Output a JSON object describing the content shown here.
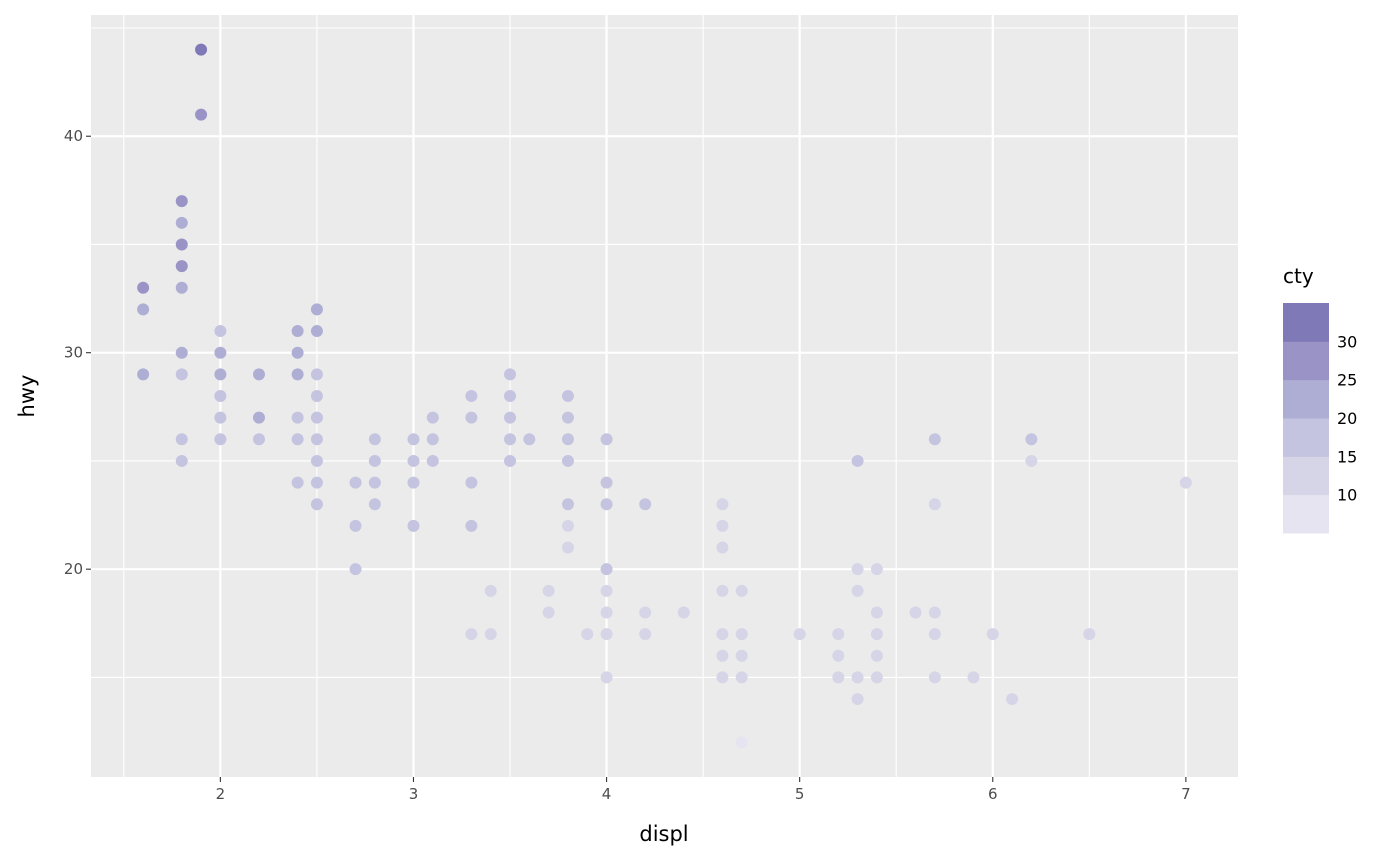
{
  "chart_data": {
    "type": "scatter",
    "title": "",
    "xlabel": "displ",
    "ylabel": "hwy",
    "xlim": [
      1.33,
      7.27
    ],
    "ylim": [
      10.4,
      45.6
    ],
    "x_ticks": [
      2,
      3,
      4,
      5,
      6,
      7
    ],
    "y_ticks": [
      20,
      30,
      40
    ],
    "grid": true,
    "legend": {
      "title": "cty",
      "placement": "right",
      "breaks": [
        10,
        15,
        20,
        25,
        30
      ],
      "bin_colors": [
        "#e6e4f1",
        "#d5d5e7",
        "#c4c4e0",
        "#aeaed4",
        "#9a93c6",
        "#8079b7"
      ]
    },
    "colors": {
      "panel": "#ebebeb",
      "grid": "#ffffff",
      "tick_text": "#4d4d4d"
    },
    "points_columns": [
      "displ",
      "hwy",
      "cty"
    ],
    "points": [
      [
        1.9,
        44,
        33
      ],
      [
        1.9,
        41,
        28
      ],
      [
        1.8,
        37,
        28
      ],
      [
        1.8,
        36,
        24
      ],
      [
        1.8,
        35,
        28
      ],
      [
        1.8,
        34,
        28
      ],
      [
        1.8,
        33,
        24
      ],
      [
        1.8,
        30,
        21
      ],
      [
        1.8,
        29,
        18
      ],
      [
        1.8,
        26,
        18
      ],
      [
        1.8,
        25,
        18
      ],
      [
        1.6,
        33,
        28
      ],
      [
        1.6,
        32,
        24
      ],
      [
        1.6,
        29,
        23
      ],
      [
        2.0,
        31,
        18
      ],
      [
        2.0,
        30,
        21
      ],
      [
        2.0,
        29,
        21
      ],
      [
        2.0,
        28,
        18
      ],
      [
        2.0,
        27,
        18
      ],
      [
        2.0,
        26,
        18
      ],
      [
        2.2,
        29,
        21
      ],
      [
        2.2,
        27,
        21
      ],
      [
        2.2,
        26,
        18
      ],
      [
        2.4,
        31,
        21
      ],
      [
        2.4,
        30,
        21
      ],
      [
        2.4,
        29,
        21
      ],
      [
        2.4,
        27,
        18
      ],
      [
        2.4,
        26,
        18
      ],
      [
        2.4,
        24,
        18
      ],
      [
        2.5,
        32,
        21
      ],
      [
        2.5,
        31,
        21
      ],
      [
        2.5,
        29,
        18
      ],
      [
        2.5,
        28,
        18
      ],
      [
        2.5,
        27,
        18
      ],
      [
        2.5,
        26,
        18
      ],
      [
        2.5,
        25,
        18
      ],
      [
        2.5,
        24,
        18
      ],
      [
        2.5,
        23,
        18
      ],
      [
        2.7,
        24,
        18
      ],
      [
        2.7,
        22,
        18
      ],
      [
        2.7,
        20,
        18
      ],
      [
        2.8,
        26,
        18
      ],
      [
        2.8,
        25,
        18
      ],
      [
        2.8,
        24,
        18
      ],
      [
        2.8,
        23,
        18
      ],
      [
        3.0,
        26,
        18
      ],
      [
        3.0,
        25,
        18
      ],
      [
        3.0,
        24,
        18
      ],
      [
        3.0,
        22,
        18
      ],
      [
        3.1,
        27,
        18
      ],
      [
        3.1,
        26,
        18
      ],
      [
        3.1,
        25,
        18
      ],
      [
        3.3,
        28,
        18
      ],
      [
        3.3,
        27,
        18
      ],
      [
        3.3,
        24,
        18
      ],
      [
        3.3,
        22,
        18
      ],
      [
        3.3,
        17,
        13
      ],
      [
        3.4,
        19,
        13
      ],
      [
        3.4,
        17,
        13
      ],
      [
        3.5,
        29,
        18
      ],
      [
        3.5,
        28,
        18
      ],
      [
        3.5,
        27,
        18
      ],
      [
        3.5,
        26,
        18
      ],
      [
        3.5,
        25,
        18
      ],
      [
        3.6,
        26,
        18
      ],
      [
        3.7,
        19,
        13
      ],
      [
        3.7,
        18,
        13
      ],
      [
        3.8,
        28,
        18
      ],
      [
        3.8,
        27,
        18
      ],
      [
        3.8,
        26,
        18
      ],
      [
        3.8,
        25,
        18
      ],
      [
        3.8,
        23,
        18
      ],
      [
        3.8,
        22,
        14
      ],
      [
        3.8,
        21,
        14
      ],
      [
        3.9,
        17,
        13
      ],
      [
        4.0,
        26,
        18
      ],
      [
        4.0,
        24,
        18
      ],
      [
        4.0,
        23,
        18
      ],
      [
        4.0,
        20,
        18
      ],
      [
        4.0,
        19,
        13
      ],
      [
        4.0,
        18,
        13
      ],
      [
        4.0,
        17,
        13
      ],
      [
        4.0,
        15,
        13
      ],
      [
        4.2,
        23,
        18
      ],
      [
        4.2,
        18,
        13
      ],
      [
        4.2,
        17,
        13
      ],
      [
        4.4,
        18,
        13
      ],
      [
        4.6,
        23,
        13
      ],
      [
        4.6,
        22,
        13
      ],
      [
        4.6,
        21,
        13
      ],
      [
        4.6,
        19,
        13
      ],
      [
        4.6,
        17,
        13
      ],
      [
        4.6,
        16,
        13
      ],
      [
        4.6,
        15,
        13
      ],
      [
        4.7,
        19,
        13
      ],
      [
        4.7,
        17,
        13
      ],
      [
        4.7,
        16,
        13
      ],
      [
        4.7,
        15,
        13
      ],
      [
        4.7,
        12,
        9
      ],
      [
        5.0,
        17,
        13
      ],
      [
        5.2,
        17,
        13
      ],
      [
        5.2,
        16,
        13
      ],
      [
        5.2,
        15,
        13
      ],
      [
        5.3,
        25,
        18
      ],
      [
        5.3,
        20,
        13
      ],
      [
        5.3,
        19,
        13
      ],
      [
        5.3,
        15,
        13
      ],
      [
        5.3,
        14,
        13
      ],
      [
        5.4,
        20,
        13
      ],
      [
        5.4,
        18,
        13
      ],
      [
        5.4,
        17,
        13
      ],
      [
        5.4,
        16,
        13
      ],
      [
        5.4,
        15,
        13
      ],
      [
        5.6,
        18,
        13
      ],
      [
        5.7,
        26,
        18
      ],
      [
        5.7,
        23,
        13
      ],
      [
        5.7,
        18,
        13
      ],
      [
        5.7,
        17,
        13
      ],
      [
        5.7,
        15,
        13
      ],
      [
        5.9,
        15,
        13
      ],
      [
        6.0,
        17,
        13
      ],
      [
        6.1,
        14,
        13
      ],
      [
        6.2,
        26,
        18
      ],
      [
        6.2,
        25,
        13
      ],
      [
        6.5,
        17,
        13
      ],
      [
        7.0,
        24,
        13
      ]
    ]
  }
}
